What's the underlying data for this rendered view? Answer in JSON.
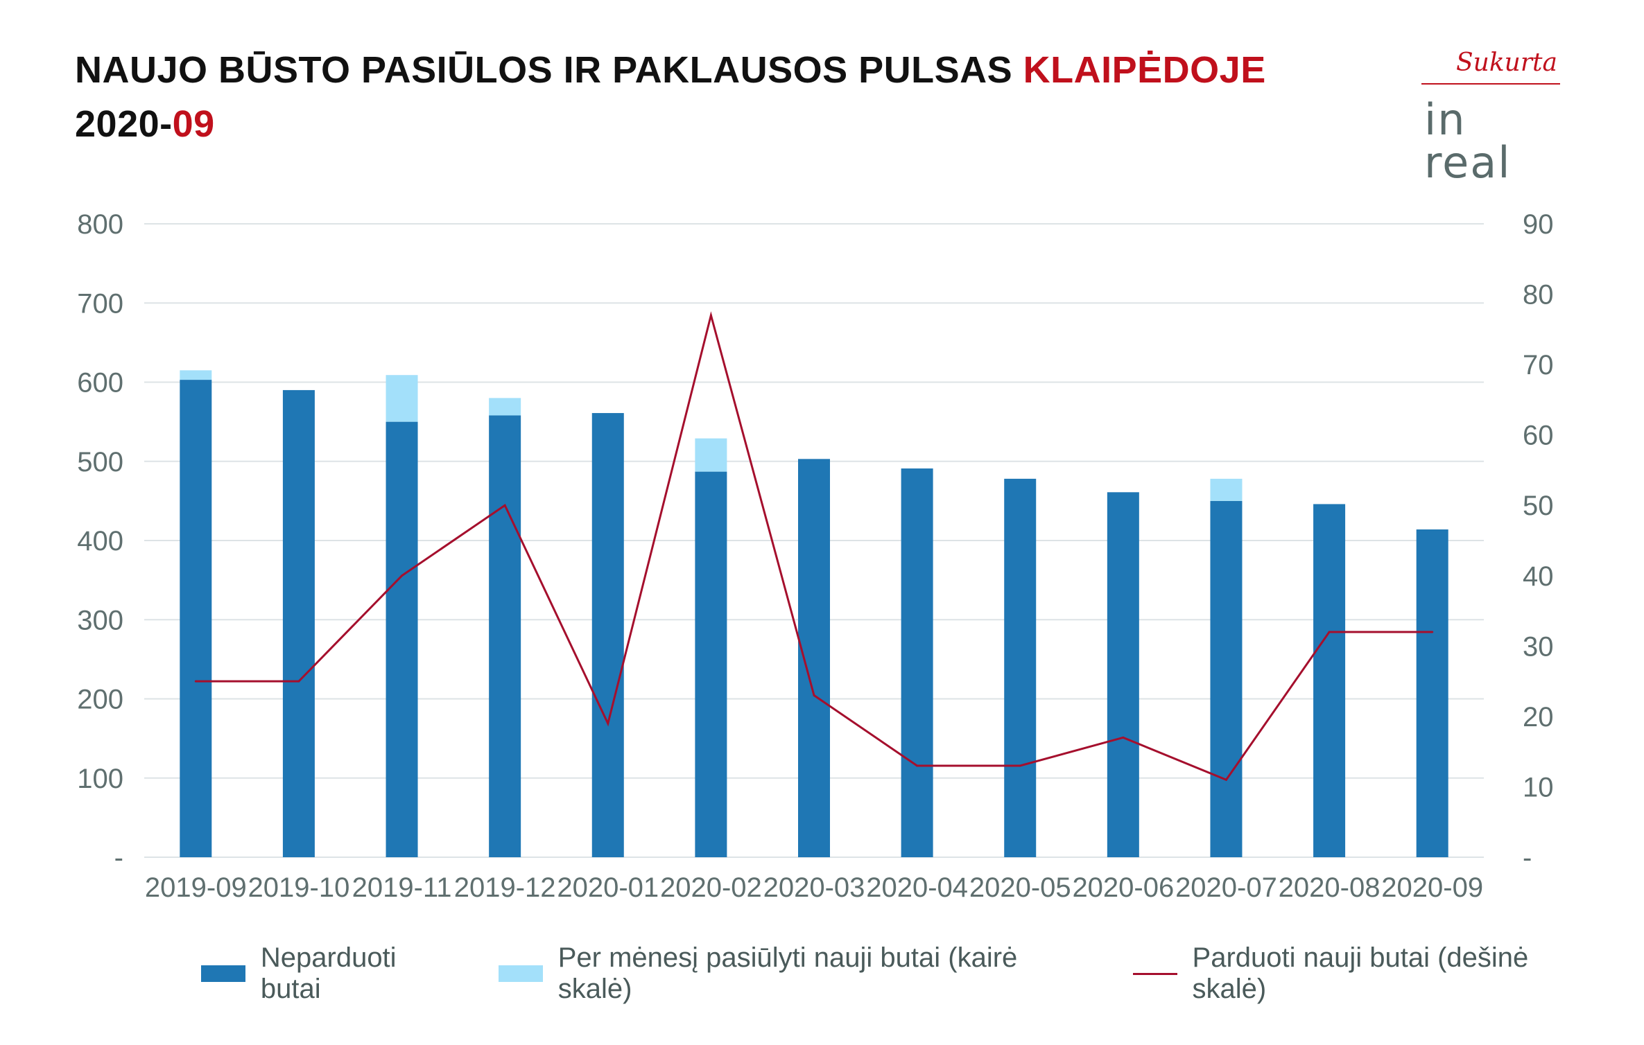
{
  "header": {
    "title_line1_main": "NAUJO BŪSTO PASIŪLOS IR PAKLAUSOS PULSAS ",
    "title_line1_accent": "KLAIPĖDOJE",
    "title_line2_main": "2020-",
    "title_line2_accent": "09"
  },
  "logo": {
    "script_text": "Sukurta",
    "brand_text": "in real"
  },
  "colors": {
    "unsold": "#1f77b4",
    "new_offered": "#a3e0fa",
    "sold_line": "#a50f2d",
    "grid": "#dde3e6",
    "tick_text": "#5f6f6f",
    "title_accent": "#c0101c"
  },
  "chart_data": {
    "type": "bar",
    "categories": [
      "2019-09",
      "2019-10",
      "2019-11",
      "2019-12",
      "2020-01",
      "2020-02",
      "2020-03",
      "2020-04",
      "2020-05",
      "2020-06",
      "2020-07",
      "2020-08",
      "2020-09"
    ],
    "series": [
      {
        "name": "Neparduoti butai",
        "type": "bar",
        "axis": "left",
        "stack": "main",
        "values": [
          603,
          590,
          550,
          558,
          561,
          487,
          503,
          491,
          478,
          461,
          450,
          446,
          414
        ]
      },
      {
        "name": "Per mėnesį pasiūlyti nauji butai (kairė skalė)",
        "type": "bar",
        "axis": "left",
        "stack": "main",
        "values": [
          12,
          0,
          59,
          22,
          0,
          42,
          0,
          0,
          0,
          0,
          28,
          0,
          0
        ]
      },
      {
        "name": "Parduoti nauji butai (dešinė skalė)",
        "type": "line",
        "axis": "right",
        "values": [
          25,
          25,
          40,
          50,
          19,
          77,
          23,
          13,
          13,
          17,
          11,
          32,
          32
        ]
      }
    ],
    "left_axis": {
      "ylim": [
        0,
        800
      ],
      "ticks": [
        "-",
        "100",
        "200",
        "300",
        "400",
        "500",
        "600",
        "700",
        "800"
      ]
    },
    "right_axis": {
      "ylim": [
        0,
        90
      ],
      "ticks": [
        "-",
        "10",
        "20",
        "30",
        "40",
        "50",
        "60",
        "70",
        "80",
        "90"
      ]
    },
    "grid": true,
    "legend_position": "bottom"
  }
}
